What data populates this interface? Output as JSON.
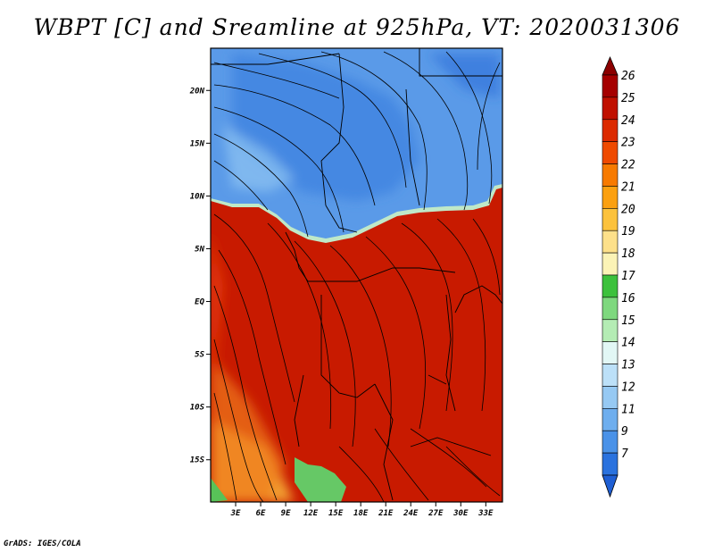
{
  "title": "WBPT [C] and Sreamline at 925hPa, VT: 2020031306",
  "credit": "GrADS: IGES/COLA",
  "map": {
    "lat_range": [
      -19,
      24
    ],
    "lon_range": [
      0,
      35
    ],
    "lat_ticks": [
      {
        "value": 20,
        "label": "20N"
      },
      {
        "value": 15,
        "label": "15N"
      },
      {
        "value": 10,
        "label": "10N"
      },
      {
        "value": 5,
        "label": "5N"
      },
      {
        "value": 0,
        "label": "EQ"
      },
      {
        "value": -5,
        "label": "5S"
      },
      {
        "value": -10,
        "label": "10S"
      },
      {
        "value": -15,
        "label": "15S"
      }
    ],
    "lon_ticks": [
      {
        "value": 3,
        "label": "3E"
      },
      {
        "value": 6,
        "label": "6E"
      },
      {
        "value": 9,
        "label": "9E"
      },
      {
        "value": 12,
        "label": "12E"
      },
      {
        "value": 15,
        "label": "15E"
      },
      {
        "value": 18,
        "label": "18E"
      },
      {
        "value": 21,
        "label": "21E"
      },
      {
        "value": 24,
        "label": "24E"
      },
      {
        "value": 27,
        "label": "27E"
      },
      {
        "value": 30,
        "label": "30E"
      },
      {
        "value": 33,
        "label": "33E"
      }
    ]
  },
  "colorbar": {
    "levels": [
      {
        "label": "26",
        "color": "#a50000"
      },
      {
        "label": "25",
        "color": "#c01000"
      },
      {
        "label": "24",
        "color": "#dc2a00"
      },
      {
        "label": "23",
        "color": "#ef4a00"
      },
      {
        "label": "22",
        "color": "#f77a00"
      },
      {
        "label": "21",
        "color": "#fba010"
      },
      {
        "label": "20",
        "color": "#fcc23c"
      },
      {
        "label": "19",
        "color": "#fde08a"
      },
      {
        "label": "18",
        "color": "#fbf3b6"
      },
      {
        "label": "17",
        "color": "#3cc13c"
      },
      {
        "label": "16",
        "color": "#7ed87e"
      },
      {
        "label": "15",
        "color": "#b4ecb4"
      },
      {
        "label": "14",
        "color": "#e2f7f5"
      },
      {
        "label": "13",
        "color": "#bce0f8"
      },
      {
        "label": "12",
        "color": "#96c9f3"
      },
      {
        "label": "11",
        "color": "#6eaeee"
      },
      {
        "label": "9",
        "color": "#4a92e8"
      },
      {
        "label": "7",
        "color": "#2a72de"
      }
    ],
    "top_color": "#8c0000",
    "bottom_color": "#1f5fd4"
  }
}
